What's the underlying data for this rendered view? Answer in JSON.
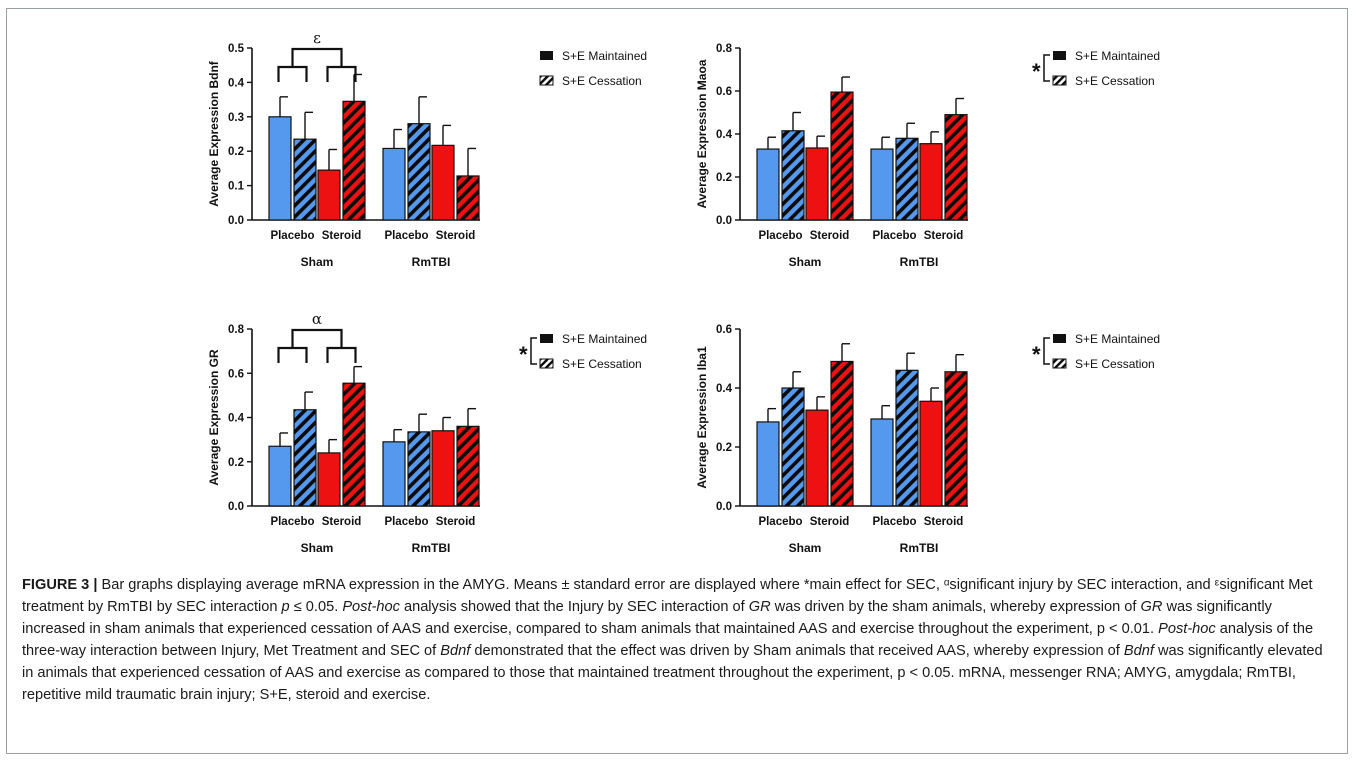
{
  "chart_data": [
    {
      "type": "bar",
      "title": "",
      "ylabel": "Average Expression Bdnf",
      "ylim": [
        0,
        0.5
      ],
      "yticks": [
        "0.0",
        "0.1",
        "0.2",
        "0.3",
        "0.4",
        "0.5"
      ],
      "groups": [
        "Sham",
        "RmTBI"
      ],
      "categories": [
        "Placebo",
        "Steroid",
        "Placebo",
        "Steroid"
      ],
      "series": [
        {
          "name": "S+E Maintained",
          "pattern": "solid",
          "values": [
            0.3,
            0.145,
            0.208,
            0.217
          ],
          "errors": [
            0.058,
            0.06,
            0.055,
            0.058
          ]
        },
        {
          "name": "S+E Cessation",
          "pattern": "hatched",
          "values": [
            0.235,
            0.345,
            0.28,
            0.128
          ],
          "errors": [
            0.078,
            0.078,
            0.078,
            0.08
          ]
        }
      ],
      "colors": {
        "placebo": "#5599ee",
        "steroid": "#ee1111"
      },
      "annotation": "ε",
      "legend_star": ""
    },
    {
      "type": "bar",
      "title": "",
      "ylabel": "Average Expression Maoa",
      "ylim": [
        0,
        0.8
      ],
      "yticks": [
        "0.0",
        "0.2",
        "0.4",
        "0.6",
        "0.8"
      ],
      "groups": [
        "Sham",
        "RmTBI"
      ],
      "categories": [
        "Placebo",
        "Steroid",
        "Placebo",
        "Steroid"
      ],
      "series": [
        {
          "name": "S+E Maintained",
          "pattern": "solid",
          "values": [
            0.33,
            0.335,
            0.33,
            0.355
          ],
          "errors": [
            0.055,
            0.055,
            0.055,
            0.055
          ]
        },
        {
          "name": "S+E Cessation",
          "pattern": "hatched",
          "values": [
            0.415,
            0.595,
            0.38,
            0.49
          ],
          "errors": [
            0.085,
            0.07,
            0.07,
            0.075
          ]
        }
      ],
      "colors": {
        "placebo": "#5599ee",
        "steroid": "#ee1111"
      },
      "annotation": "",
      "legend_star": "*"
    },
    {
      "type": "bar",
      "title": "",
      "ylabel": "Average Expression GR",
      "ylim": [
        0,
        0.8
      ],
      "yticks": [
        "0.0",
        "0.2",
        "0.4",
        "0.6",
        "0.8"
      ],
      "groups": [
        "Sham",
        "RmTBI"
      ],
      "categories": [
        "Placebo",
        "Steroid",
        "Placebo",
        "Steroid"
      ],
      "series": [
        {
          "name": "S+E Maintained",
          "pattern": "solid",
          "values": [
            0.27,
            0.24,
            0.29,
            0.34
          ],
          "errors": [
            0.06,
            0.06,
            0.055,
            0.06
          ]
        },
        {
          "name": "S+E Cessation",
          "pattern": "hatched",
          "values": [
            0.435,
            0.555,
            0.335,
            0.36
          ],
          "errors": [
            0.08,
            0.075,
            0.08,
            0.08
          ]
        }
      ],
      "colors": {
        "placebo": "#5599ee",
        "steroid": "#ee1111"
      },
      "annotation": "α",
      "legend_star": "*"
    },
    {
      "type": "bar",
      "title": "",
      "ylabel": "Average Expression Iba1",
      "ylim": [
        0,
        0.6
      ],
      "yticks": [
        "0.0",
        "0.2",
        "0.4",
        "0.6"
      ],
      "groups": [
        "Sham",
        "RmTBI"
      ],
      "categories": [
        "Placebo",
        "Steroid",
        "Placebo",
        "Steroid"
      ],
      "series": [
        {
          "name": "S+E Maintained",
          "pattern": "solid",
          "values": [
            0.285,
            0.325,
            0.295,
            0.355
          ],
          "errors": [
            0.045,
            0.045,
            0.045,
            0.045
          ]
        },
        {
          "name": "S+E Cessation",
          "pattern": "hatched",
          "values": [
            0.4,
            0.49,
            0.46,
            0.455
          ],
          "errors": [
            0.055,
            0.06,
            0.058,
            0.058
          ]
        }
      ],
      "colors": {
        "placebo": "#5599ee",
        "steroid": "#ee1111"
      },
      "annotation": "",
      "legend_star": "*"
    }
  ],
  "caption": {
    "label": "FIGURE 3 |",
    "text": " Bar graphs displaying average mRNA expression in the AMYG. Means ± standard error are displayed where *main effect for SEC, ᵅsignificant injury by SEC interaction, and ᵋsignificant Met treatment by RmTBI by SEC interaction p ≤ 0.05. Post-hoc analysis showed that the Injury by SEC interaction of GR was driven by the sham animals, whereby expression of GR was significantly increased in sham animals that experienced cessation of AAS and exercise, compared to sham animals that maintained AAS and exercise throughout the experiment, p < 0.01. Post-hoc analysis of the three-way interaction between Injury, Met Treatment and SEC of Bdnf demonstrated that the effect was driven by Sham animals that received AAS, whereby expression of Bdnf was significantly elevated in animals that experienced cessation of AAS and exercise as compared to those that maintained treatment throughout the experiment, p < 0.05. mRNA, messenger RNA; AMYG, amygdala; RmTBI, repetitive mild traumatic brain injury; S+E, steroid and exercise."
  }
}
